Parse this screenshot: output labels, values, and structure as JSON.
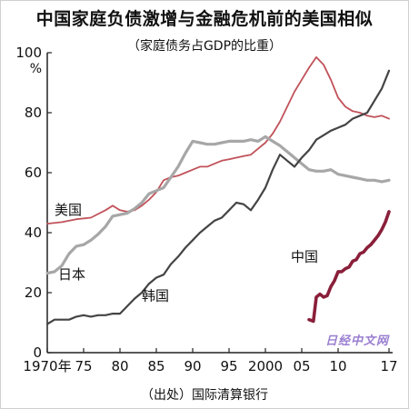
{
  "title": "中国家庭负债激增与金融危机前的美国相似",
  "subtitle": "（家庭债务占GDP的比重）",
  "source": "（出处）国际清算银行",
  "watermark": "日经中文网",
  "colors": {
    "usa": "#c0525a",
    "japan": "#a7a7a7",
    "korea": "#444444",
    "china": "#8a1f3a"
  },
  "chart_data": {
    "type": "line",
    "title": "中国家庭负债激增与金融危机前的美国相似",
    "subtitle": "（家庭债务占GDP的比重）",
    "unit": "%",
    "xlim": [
      1970,
      2017.5
    ],
    "ylim": [
      0,
      100
    ],
    "y_ticks": [
      0,
      20,
      40,
      60,
      80,
      100
    ],
    "x_ticks": [
      {
        "x": 1970,
        "label": "1970年"
      },
      {
        "x": 1975,
        "label": "75"
      },
      {
        "x": 1980,
        "label": "80"
      },
      {
        "x": 1985,
        "label": "85"
      },
      {
        "x": 1990,
        "label": "90"
      },
      {
        "x": 1995,
        "label": "95"
      },
      {
        "x": 2000,
        "label": "2000"
      },
      {
        "x": 2005,
        "label": "05"
      },
      {
        "x": 2010,
        "label": "10"
      },
      {
        "x": 2017,
        "label": "17"
      }
    ],
    "series": [
      {
        "name": "美国",
        "color": "#c0525a",
        "label_at": [
          1971,
          46
        ],
        "x": [
          1970,
          1972,
          1974,
          1976,
          1978,
          1979,
          1980,
          1981,
          1982,
          1983,
          1984,
          1985,
          1986,
          1987,
          1988,
          1989,
          1990,
          1991,
          1992,
          1993,
          1994,
          1995,
          1996,
          1997,
          1998,
          1999,
          2000,
          2001,
          2002,
          2003,
          2004,
          2005,
          2006,
          2007,
          2008,
          2009,
          2010,
          2011,
          2012,
          2013,
          2014,
          2015,
          2016,
          2017
        ],
        "y": [
          43,
          43.5,
          44.5,
          45,
          47.5,
          49,
          47.5,
          47,
          47.5,
          49,
          51,
          53.5,
          57.5,
          58.5,
          59,
          60,
          61,
          62,
          62,
          63,
          64,
          64.5,
          65,
          65.5,
          66,
          68,
          70,
          73,
          77,
          82,
          87,
          91,
          95,
          98.5,
          96,
          91,
          85,
          82,
          80.5,
          80,
          79,
          78.5,
          79,
          78
        ]
      },
      {
        "name": "日本",
        "color": "#a7a7a7",
        "label_at": [
          1971.5,
          24.5
        ],
        "x": [
          1970,
          1971,
          1972,
          1973,
          1974,
          1975,
          1976,
          1977,
          1978,
          1979,
          1980,
          1981,
          1982,
          1983,
          1984,
          1985,
          1986,
          1987,
          1988,
          1989,
          1990,
          1991,
          1992,
          1993,
          1994,
          1995,
          1996,
          1997,
          1998,
          1999,
          2000,
          2001,
          2002,
          2003,
          2004,
          2005,
          2006,
          2007,
          2008,
          2009,
          2010,
          2011,
          2012,
          2013,
          2014,
          2015,
          2016,
          2017
        ],
        "y": [
          26.5,
          27,
          29,
          33,
          35.5,
          36,
          37.5,
          39.5,
          42,
          45.5,
          46,
          46.5,
          48,
          50,
          53,
          54,
          55,
          58.5,
          62,
          66.5,
          70.5,
          70,
          69.5,
          69.5,
          70,
          70.5,
          70.5,
          70.5,
          71,
          70.5,
          72,
          70.5,
          69,
          67,
          65,
          63,
          61,
          60.5,
          60.5,
          61,
          59.5,
          59,
          58.5,
          58,
          57.5,
          57.5,
          57,
          57.5
        ]
      },
      {
        "name": "韩国",
        "color": "#444444",
        "label_at": [
          1983,
          17.5
        ],
        "x": [
          1970,
          1971,
          1972,
          1973,
          1974,
          1975,
          1976,
          1977,
          1978,
          1979,
          1980,
          1981,
          1982,
          1983,
          1984,
          1985,
          1986,
          1987,
          1988,
          1989,
          1990,
          1991,
          1992,
          1993,
          1994,
          1995,
          1996,
          1997,
          1998,
          1999,
          2000,
          2001,
          2002,
          2003,
          2004,
          2005,
          2006,
          2007,
          2008,
          2009,
          2010,
          2011,
          2012,
          2013,
          2014,
          2015,
          2016,
          2017
        ],
        "y": [
          9.5,
          11,
          11,
          11,
          12,
          12.5,
          12,
          12.5,
          12.5,
          13,
          13,
          15.5,
          18,
          20,
          23,
          25,
          26,
          29.5,
          32,
          35,
          37.5,
          40,
          42,
          44,
          45,
          47.5,
          50,
          49.5,
          47.5,
          51,
          55,
          61,
          66,
          64,
          62,
          65,
          67.5,
          71,
          72.5,
          74,
          75,
          76,
          78,
          79,
          80,
          84,
          88,
          94
        ]
      },
      {
        "name": "中国",
        "color": "#8a1f3a",
        "label_at": [
          2003.5,
          30.5
        ],
        "x": [
          2006,
          2006.6,
          2007,
          2007.5,
          2008,
          2008.5,
          2009,
          2009.5,
          2010,
          2010.5,
          2011,
          2011.5,
          2012,
          2012.5,
          2013,
          2013.5,
          2014,
          2014.5,
          2015,
          2015.5,
          2016,
          2016.5,
          2017
        ],
        "y": [
          11,
          10.5,
          18.5,
          19.5,
          18.5,
          19,
          22,
          24,
          27,
          27,
          28,
          28.5,
          30.5,
          31,
          33,
          33.5,
          35,
          36,
          37.5,
          39,
          41,
          43.5,
          47
        ]
      }
    ]
  }
}
